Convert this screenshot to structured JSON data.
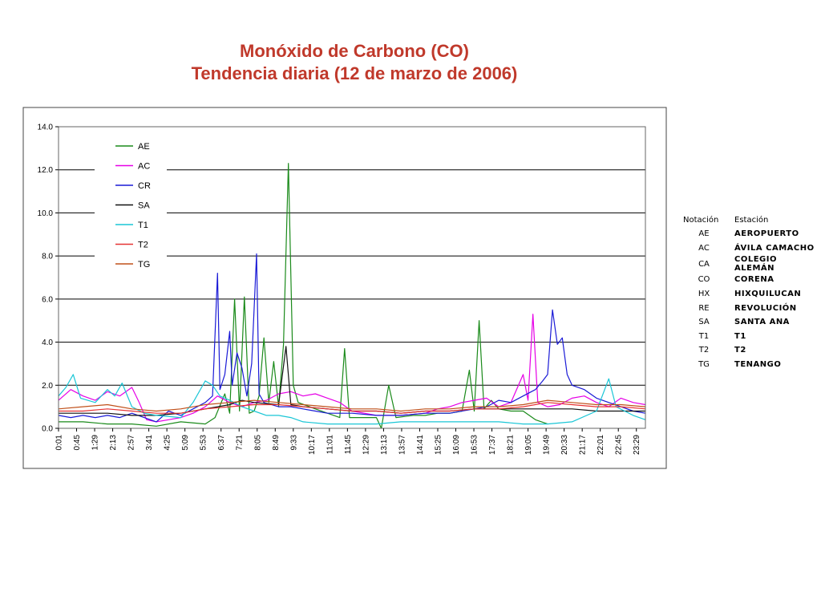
{
  "title": {
    "line1": "Monóxido de Carbono (CO)",
    "line2": "Tendencia diaria (12 de marzo de 2006)"
  },
  "stations_table": {
    "headers": [
      "Notación",
      "Estación"
    ],
    "rows": [
      [
        "AE",
        "AEROPUERTO"
      ],
      [
        "AC",
        "ÁVILA CAMACHO"
      ],
      [
        "CA",
        "COLEGIO ALEMÁN"
      ],
      [
        "CO",
        "CORENA"
      ],
      [
        "HX",
        "HIXQUILUCAN"
      ],
      [
        "RE",
        "REVOLUCIÓN"
      ],
      [
        "SA",
        "SANTA ANA"
      ],
      [
        "T1",
        "T1"
      ],
      [
        "T2",
        "T2"
      ],
      [
        "TG",
        "TENANGO"
      ]
    ]
  },
  "chart_data": {
    "type": "line",
    "ylim": [
      0,
      14
    ],
    "yticks": [
      "0.0",
      "2.0",
      "4.0",
      "6.0",
      "8.0",
      "10.0",
      "12.0",
      "14.0"
    ],
    "grid": true,
    "legend_position": "top-left",
    "x_tick_labels": [
      "0:01",
      "0:45",
      "1:29",
      "2:13",
      "2:57",
      "3:41",
      "4:25",
      "5:09",
      "5:53",
      "6:37",
      "7:21",
      "8:05",
      "8:49",
      "9:33",
      "10:17",
      "11:01",
      "11:45",
      "12:29",
      "13:13",
      "13:57",
      "14:41",
      "15:25",
      "16:09",
      "16:53",
      "17:37",
      "18:21",
      "19:05",
      "19:49",
      "20:33",
      "21:17",
      "22:01",
      "22:45",
      "23:29"
    ],
    "series": [
      {
        "name": "AE",
        "color": "#1a8a1a",
        "points": [
          [
            0.0,
            0.3
          ],
          [
            1.0,
            0.3
          ],
          [
            2.0,
            0.2
          ],
          [
            3.0,
            0.2
          ],
          [
            4.0,
            0.1
          ],
          [
            5.0,
            0.3
          ],
          [
            6.0,
            0.2
          ],
          [
            6.4,
            0.5
          ],
          [
            6.8,
            1.6
          ],
          [
            7.0,
            0.7
          ],
          [
            7.2,
            6.0
          ],
          [
            7.4,
            0.8
          ],
          [
            7.6,
            6.1
          ],
          [
            7.8,
            0.7
          ],
          [
            8.0,
            0.8
          ],
          [
            8.2,
            1.5
          ],
          [
            8.4,
            4.2
          ],
          [
            8.6,
            1.2
          ],
          [
            8.8,
            3.1
          ],
          [
            9.0,
            1.0
          ],
          [
            9.2,
            3.9
          ],
          [
            9.4,
            12.3
          ],
          [
            9.6,
            2.0
          ],
          [
            9.8,
            1.2
          ],
          [
            10.5,
            0.9
          ],
          [
            11.0,
            0.7
          ],
          [
            11.5,
            0.5
          ],
          [
            11.7,
            3.7
          ],
          [
            11.9,
            0.5
          ],
          [
            12.5,
            0.5
          ],
          [
            13.0,
            0.5
          ],
          [
            13.2,
            0.0
          ],
          [
            13.5,
            2.0
          ],
          [
            13.8,
            0.5
          ],
          [
            14.5,
            0.6
          ],
          [
            15.0,
            0.6
          ],
          [
            15.5,
            0.7
          ],
          [
            16.0,
            0.7
          ],
          [
            16.5,
            0.8
          ],
          [
            16.8,
            2.7
          ],
          [
            17.0,
            0.8
          ],
          [
            17.2,
            5.0
          ],
          [
            17.4,
            0.9
          ],
          [
            17.7,
            1.3
          ],
          [
            18.0,
            0.9
          ],
          [
            18.5,
            0.8
          ],
          [
            19.0,
            0.8
          ],
          [
            19.5,
            0.4
          ],
          [
            20.0,
            0.2
          ]
        ]
      },
      {
        "name": "AC",
        "color": "#e600e6",
        "points": [
          [
            0.0,
            1.3
          ],
          [
            0.5,
            1.8
          ],
          [
            1.0,
            1.5
          ],
          [
            1.5,
            1.3
          ],
          [
            2.0,
            1.7
          ],
          [
            2.5,
            1.5
          ],
          [
            3.0,
            1.9
          ],
          [
            3.3,
            1.2
          ],
          [
            3.6,
            0.4
          ],
          [
            4.0,
            0.3
          ],
          [
            4.5,
            0.4
          ],
          [
            5.0,
            0.5
          ],
          [
            5.5,
            0.7
          ],
          [
            6.0,
            1.0
          ],
          [
            6.5,
            1.5
          ],
          [
            7.0,
            1.2
          ],
          [
            7.5,
            1.0
          ],
          [
            8.0,
            1.2
          ],
          [
            8.5,
            1.3
          ],
          [
            9.0,
            1.6
          ],
          [
            9.5,
            1.7
          ],
          [
            10.0,
            1.5
          ],
          [
            10.5,
            1.6
          ],
          [
            11.0,
            1.4
          ],
          [
            11.5,
            1.2
          ],
          [
            12.0,
            0.8
          ],
          [
            12.5,
            0.7
          ],
          [
            13.0,
            0.6
          ],
          [
            14.0,
            0.6
          ],
          [
            15.0,
            0.7
          ],
          [
            15.5,
            0.9
          ],
          [
            16.0,
            1.0
          ],
          [
            16.5,
            1.2
          ],
          [
            17.0,
            1.3
          ],
          [
            17.5,
            1.4
          ],
          [
            18.0,
            1.0
          ],
          [
            18.5,
            1.2
          ],
          [
            19.0,
            2.5
          ],
          [
            19.2,
            1.3
          ],
          [
            19.4,
            5.3
          ],
          [
            19.6,
            1.2
          ],
          [
            20.0,
            1.0
          ],
          [
            20.5,
            1.1
          ],
          [
            21.0,
            1.4
          ],
          [
            21.5,
            1.5
          ],
          [
            22.0,
            1.2
          ],
          [
            22.5,
            1.0
          ],
          [
            23.0,
            1.4
          ],
          [
            23.5,
            1.2
          ],
          [
            24.0,
            1.1
          ]
        ]
      },
      {
        "name": "CR",
        "color": "#1a1ad6",
        "points": [
          [
            0.0,
            0.6
          ],
          [
            0.5,
            0.5
          ],
          [
            1.0,
            0.6
          ],
          [
            1.5,
            0.5
          ],
          [
            2.0,
            0.6
          ],
          [
            2.5,
            0.5
          ],
          [
            3.0,
            0.7
          ],
          [
            3.5,
            0.5
          ],
          [
            4.0,
            0.3
          ],
          [
            4.5,
            0.8
          ],
          [
            5.0,
            0.6
          ],
          [
            5.5,
            0.9
          ],
          [
            6.0,
            1.2
          ],
          [
            6.3,
            1.5
          ],
          [
            6.5,
            7.2
          ],
          [
            6.6,
            1.8
          ],
          [
            6.8,
            2.5
          ],
          [
            7.0,
            4.5
          ],
          [
            7.1,
            2.0
          ],
          [
            7.3,
            3.5
          ],
          [
            7.5,
            2.8
          ],
          [
            7.7,
            1.5
          ],
          [
            7.9,
            3.0
          ],
          [
            8.1,
            8.1
          ],
          [
            8.2,
            1.6
          ],
          [
            8.4,
            1.2
          ],
          [
            9.0,
            1.0
          ],
          [
            9.5,
            1.0
          ],
          [
            10.0,
            0.9
          ],
          [
            10.5,
            0.8
          ],
          [
            11.0,
            0.7
          ],
          [
            12.0,
            0.7
          ],
          [
            13.0,
            0.6
          ],
          [
            14.0,
            0.6
          ],
          [
            15.0,
            0.7
          ],
          [
            16.0,
            0.7
          ],
          [
            17.0,
            0.9
          ],
          [
            17.5,
            1.0
          ],
          [
            18.0,
            1.3
          ],
          [
            18.5,
            1.2
          ],
          [
            19.0,
            1.5
          ],
          [
            19.5,
            1.8
          ],
          [
            19.8,
            2.2
          ],
          [
            20.0,
            2.5
          ],
          [
            20.2,
            5.5
          ],
          [
            20.4,
            3.9
          ],
          [
            20.6,
            4.2
          ],
          [
            20.8,
            2.5
          ],
          [
            21.0,
            2.0
          ],
          [
            21.5,
            1.8
          ],
          [
            22.0,
            1.4
          ],
          [
            22.5,
            1.2
          ],
          [
            23.0,
            1.0
          ],
          [
            23.5,
            0.8
          ],
          [
            24.0,
            0.7
          ]
        ]
      },
      {
        "name": "SA",
        "color": "#111111",
        "points": [
          [
            0.0,
            0.7
          ],
          [
            1.0,
            0.7
          ],
          [
            2.0,
            0.7
          ],
          [
            3.0,
            0.6
          ],
          [
            4.0,
            0.6
          ],
          [
            5.0,
            0.7
          ],
          [
            6.0,
            0.9
          ],
          [
            7.0,
            1.1
          ],
          [
            7.5,
            1.3
          ],
          [
            8.0,
            1.2
          ],
          [
            9.0,
            1.1
          ],
          [
            9.3,
            3.8
          ],
          [
            9.5,
            1.1
          ],
          [
            10.0,
            1.0
          ],
          [
            11.0,
            0.9
          ],
          [
            12.0,
            0.8
          ],
          [
            13.0,
            0.8
          ],
          [
            14.0,
            0.7
          ],
          [
            15.0,
            0.8
          ],
          [
            16.0,
            0.8
          ],
          [
            17.0,
            0.9
          ],
          [
            18.0,
            0.9
          ],
          [
            19.0,
            0.9
          ],
          [
            20.0,
            0.9
          ],
          [
            21.0,
            0.9
          ],
          [
            22.0,
            0.8
          ],
          [
            23.0,
            0.8
          ],
          [
            24.0,
            0.8
          ]
        ]
      },
      {
        "name": "T1",
        "color": "#1ac6d6",
        "points": [
          [
            0.0,
            1.5
          ],
          [
            0.3,
            1.9
          ],
          [
            0.6,
            2.5
          ],
          [
            0.9,
            1.4
          ],
          [
            1.5,
            1.2
          ],
          [
            2.0,
            1.8
          ],
          [
            2.3,
            1.5
          ],
          [
            2.6,
            2.1
          ],
          [
            3.0,
            1.0
          ],
          [
            3.5,
            0.7
          ],
          [
            4.0,
            0.6
          ],
          [
            5.0,
            0.5
          ],
          [
            5.5,
            1.2
          ],
          [
            6.0,
            2.2
          ],
          [
            6.3,
            2.0
          ],
          [
            6.6,
            1.5
          ],
          [
            7.0,
            1.3
          ],
          [
            7.5,
            1.0
          ],
          [
            8.0,
            0.8
          ],
          [
            8.5,
            0.6
          ],
          [
            9.0,
            0.6
          ],
          [
            9.5,
            0.5
          ],
          [
            10.0,
            0.3
          ],
          [
            11.0,
            0.2
          ],
          [
            12.0,
            0.2
          ],
          [
            13.0,
            0.2
          ],
          [
            14.0,
            0.3
          ],
          [
            15.0,
            0.3
          ],
          [
            16.0,
            0.3
          ],
          [
            17.0,
            0.3
          ],
          [
            18.0,
            0.3
          ],
          [
            19.0,
            0.2
          ],
          [
            20.0,
            0.2
          ],
          [
            21.0,
            0.3
          ],
          [
            22.0,
            0.8
          ],
          [
            22.5,
            2.3
          ],
          [
            22.8,
            1.0
          ],
          [
            23.5,
            0.6
          ],
          [
            24.0,
            0.4
          ]
        ]
      },
      {
        "name": "T2",
        "color": "#e63333",
        "points": [
          [
            0.0,
            0.8
          ],
          [
            1.0,
            0.8
          ],
          [
            2.0,
            0.9
          ],
          [
            3.0,
            0.8
          ],
          [
            4.0,
            0.7
          ],
          [
            5.0,
            0.7
          ],
          [
            6.0,
            0.9
          ],
          [
            7.0,
            1.0
          ],
          [
            8.0,
            1.1
          ],
          [
            9.0,
            1.1
          ],
          [
            10.0,
            1.0
          ],
          [
            11.0,
            0.9
          ],
          [
            12.0,
            0.8
          ],
          [
            13.0,
            0.8
          ],
          [
            14.0,
            0.7
          ],
          [
            15.0,
            0.8
          ],
          [
            16.0,
            0.8
          ],
          [
            17.0,
            0.9
          ],
          [
            18.0,
            0.9
          ],
          [
            19.0,
            1.0
          ],
          [
            20.0,
            1.2
          ],
          [
            21.0,
            1.1
          ],
          [
            22.0,
            1.0
          ],
          [
            23.0,
            1.0
          ],
          [
            24.0,
            0.9
          ]
        ]
      },
      {
        "name": "TG",
        "color": "#c0501a",
        "points": [
          [
            0.0,
            0.9
          ],
          [
            1.0,
            1.0
          ],
          [
            2.0,
            1.1
          ],
          [
            3.0,
            0.9
          ],
          [
            4.0,
            0.8
          ],
          [
            5.0,
            0.9
          ],
          [
            6.0,
            1.1
          ],
          [
            7.0,
            1.2
          ],
          [
            8.0,
            1.3
          ],
          [
            9.0,
            1.2
          ],
          [
            10.0,
            1.1
          ],
          [
            11.0,
            1.0
          ],
          [
            12.0,
            0.9
          ],
          [
            13.0,
            0.9
          ],
          [
            14.0,
            0.8
          ],
          [
            15.0,
            0.9
          ],
          [
            16.0,
            0.9
          ],
          [
            17.0,
            1.0
          ],
          [
            18.0,
            1.0
          ],
          [
            19.0,
            1.1
          ],
          [
            20.0,
            1.3
          ],
          [
            21.0,
            1.2
          ],
          [
            22.0,
            1.1
          ],
          [
            23.0,
            1.1
          ],
          [
            24.0,
            1.0
          ]
        ]
      }
    ]
  }
}
